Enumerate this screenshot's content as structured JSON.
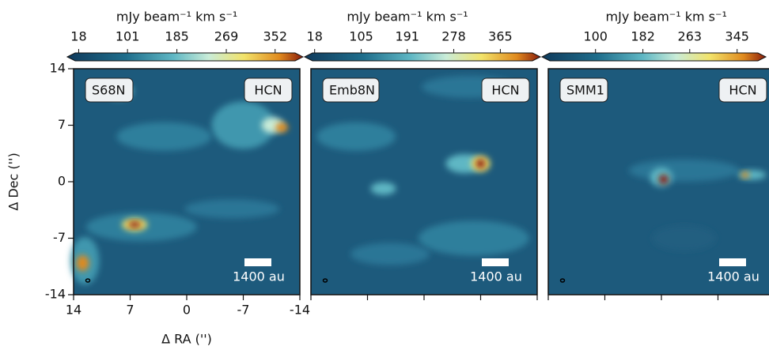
{
  "figure": {
    "y_label": "Δ Dec ('')",
    "x_label": "Δ RA ('')",
    "xlim": [
      14,
      -14
    ],
    "ylim": [
      -14,
      14
    ],
    "xticks": [
      14,
      7,
      0,
      -7,
      -14
    ],
    "yticks": [
      14,
      7,
      0,
      -7,
      -14
    ],
    "panels": [
      {
        "source": "S68N",
        "line": "HCN",
        "scalebar": "1400 au",
        "colorbar": {
          "label": "mJy beam⁻¹ km s⁻¹",
          "lim": [
            12,
            386
          ],
          "ticks": [
            18,
            101,
            185,
            269,
            352
          ]
        }
      },
      {
        "source": "Emb8N",
        "line": "HCN",
        "scalebar": "1400 au",
        "colorbar": {
          "label": "mJy beam⁻¹ km s⁻¹",
          "lim": [
            14,
            425
          ],
          "ticks": [
            18,
            105,
            191,
            278,
            365
          ]
        }
      },
      {
        "source": "SMM1",
        "line": "HCN",
        "scalebar": "1400 au",
        "colorbar": {
          "label": "mJy beam⁻¹ km s⁻¹",
          "lim": [
            21,
            381
          ],
          "ticks": [
            100,
            182,
            263,
            345
          ]
        }
      }
    ]
  }
}
